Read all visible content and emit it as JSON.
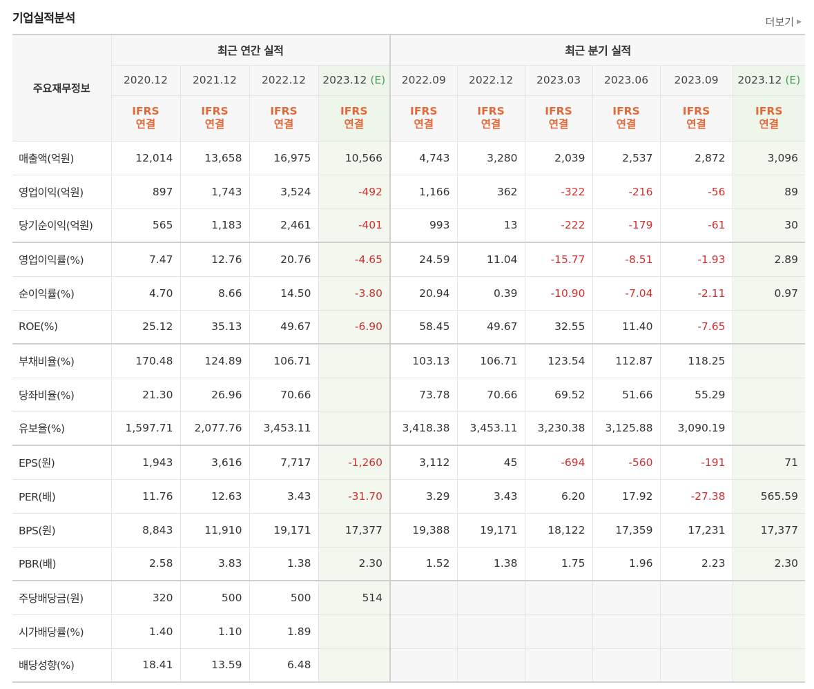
{
  "title": "기업실적분석",
  "more_label": "더보기",
  "header": {
    "row_label": "주요재무정보",
    "annual_group": "최근 연간 실적",
    "quarter_group": "최근 분기 실적",
    "estimate_mark": "(E)",
    "basis_line1": "IFRS",
    "basis_line2": "연결",
    "annual_periods": [
      "2020.12",
      "2021.12",
      "2022.12",
      "2023.12"
    ],
    "quarter_periods": [
      "2022.09",
      "2022.12",
      "2023.03",
      "2023.06",
      "2023.09",
      "2023.12"
    ]
  },
  "rows": [
    {
      "label": "매출액(억원)",
      "values": [
        "12,014",
        "13,658",
        "16,975",
        "10,566",
        "4,743",
        "3,280",
        "2,039",
        "2,537",
        "2,872",
        "3,096"
      ]
    },
    {
      "label": "영업이익(억원)",
      "values": [
        "897",
        "1,743",
        "3,524",
        "-492",
        "1,166",
        "362",
        "-322",
        "-216",
        "-56",
        "89"
      ]
    },
    {
      "label": "당기순이익(억원)",
      "values": [
        "565",
        "1,183",
        "2,461",
        "-401",
        "993",
        "13",
        "-222",
        "-179",
        "-61",
        "30"
      ]
    },
    {
      "label": "영업이익률(%)",
      "values": [
        "7.47",
        "12.76",
        "20.76",
        "-4.65",
        "24.59",
        "11.04",
        "-15.77",
        "-8.51",
        "-1.93",
        "2.89"
      ]
    },
    {
      "label": "순이익률(%)",
      "values": [
        "4.70",
        "8.66",
        "14.50",
        "-3.80",
        "20.94",
        "0.39",
        "-10.90",
        "-7.04",
        "-2.11",
        "0.97"
      ]
    },
    {
      "label": "ROE(%)",
      "values": [
        "25.12",
        "35.13",
        "49.67",
        "-6.90",
        "58.45",
        "49.67",
        "32.55",
        "11.40",
        "-7.65",
        ""
      ]
    },
    {
      "label": "부채비율(%)",
      "values": [
        "170.48",
        "124.89",
        "106.71",
        "",
        "103.13",
        "106.71",
        "123.54",
        "112.87",
        "118.25",
        ""
      ]
    },
    {
      "label": "당좌비율(%)",
      "values": [
        "21.30",
        "26.96",
        "70.66",
        "",
        "73.78",
        "70.66",
        "69.52",
        "51.66",
        "55.29",
        ""
      ]
    },
    {
      "label": "유보율(%)",
      "values": [
        "1,597.71",
        "2,077.76",
        "3,453.11",
        "",
        "3,418.38",
        "3,453.11",
        "3,230.38",
        "3,125.88",
        "3,090.19",
        ""
      ]
    },
    {
      "label": "EPS(원)",
      "values": [
        "1,943",
        "3,616",
        "7,717",
        "-1,260",
        "3,112",
        "45",
        "-694",
        "-560",
        "-191",
        "71"
      ]
    },
    {
      "label": "PER(배)",
      "values": [
        "11.76",
        "12.63",
        "3.43",
        "-31.70",
        "3.29",
        "3.43",
        "6.20",
        "17.92",
        "-27.38",
        "565.59"
      ]
    },
    {
      "label": "BPS(원)",
      "values": [
        "8,843",
        "11,910",
        "19,171",
        "17,377",
        "19,388",
        "19,171",
        "18,122",
        "17,359",
        "17,231",
        "17,377"
      ]
    },
    {
      "label": "PBR(배)",
      "values": [
        "2.58",
        "3.83",
        "1.38",
        "2.30",
        "1.52",
        "1.38",
        "1.75",
        "1.96",
        "2.23",
        "2.30"
      ]
    },
    {
      "label": "주당배당금(원)",
      "values": [
        "320",
        "500",
        "500",
        "514",
        "",
        "",
        "",
        "",
        "",
        ""
      ]
    },
    {
      "label": "시가배당률(%)",
      "values": [
        "1.40",
        "1.10",
        "1.89",
        "",
        "",
        "",
        "",
        "",
        "",
        ""
      ]
    },
    {
      "label": "배당성향(%)",
      "values": [
        "18.41",
        "13.59",
        "6.48",
        "",
        "",
        "",
        "",
        "",
        "",
        ""
      ]
    }
  ],
  "colors": {
    "negative": "#d32f2f",
    "basis": "#e26a3a",
    "estimate_bg": "#f3f8ef",
    "estimate_mark": "#4a9a5a"
  }
}
